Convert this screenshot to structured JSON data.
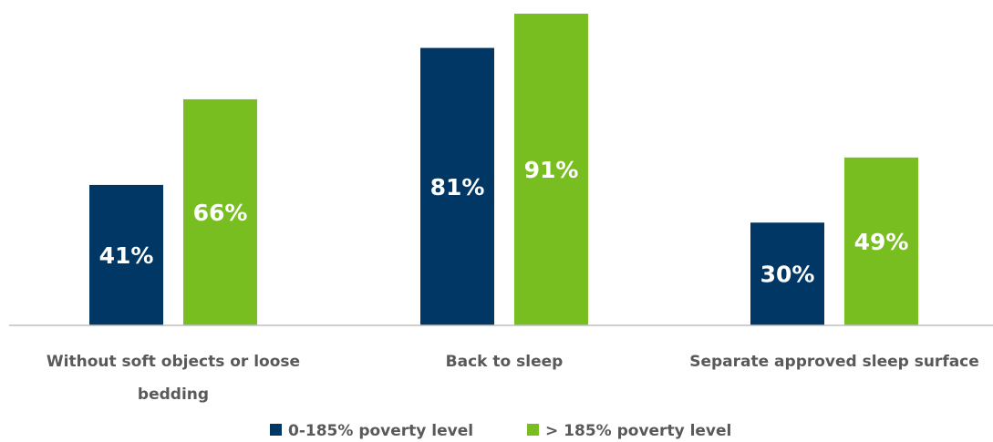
{
  "chart_data": {
    "type": "bar",
    "categories": [
      "Without soft objects or loose bedding",
      "Back to sleep",
      "Separate approved sleep surface"
    ],
    "category_lines": [
      [
        "Without soft objects or loose",
        "bedding"
      ],
      [
        "Back to sleep"
      ],
      [
        "Separate approved sleep surface"
      ]
    ],
    "series": [
      {
        "name": "0-185% poverty level",
        "values": [
          41,
          81,
          30
        ],
        "labels": [
          "41%",
          "81%",
          "30%"
        ],
        "color": "#003764",
        "label_color": "#ffffff"
      },
      {
        "name": "> 185% poverty level",
        "values": [
          66,
          91,
          49
        ],
        "labels": [
          "66%",
          "91%",
          "49%"
        ],
        "color": "#78be20",
        "label_color": "#ffffff"
      }
    ],
    "ylim": [
      0,
      91
    ],
    "grid": false,
    "legend_position": "bottom",
    "axis_color": "#bfbfbf"
  }
}
